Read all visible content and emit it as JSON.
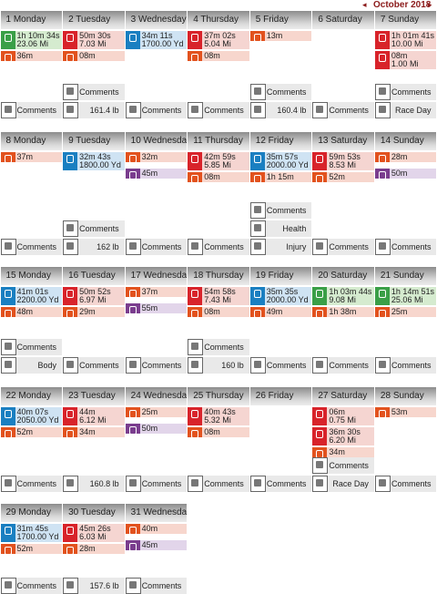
{
  "month": "October 2018",
  "weeks": [
    {
      "days": [
        {
          "label": "1 Monday",
          "activities": [
            {
              "icon": "#3a9f47",
              "bg": "#d5ebcf",
              "lines": [
                "1h 10m 34s",
                "23.06 Mi"
              ]
            },
            {
              "icon": "#e2521e",
              "bg": "#f7d6cd",
              "lines": [
                "36m"
              ]
            }
          ],
          "footer": [
            "Comments"
          ]
        },
        {
          "label": "2 Tuesday",
          "activities": [
            {
              "icon": "#d8232a",
              "bg": "#f5d5d1",
              "lines": [
                "50m 30s",
                "7.03 Mi"
              ]
            },
            {
              "icon": "#e2521e",
              "bg": "#f7d6cd",
              "lines": [
                "08m"
              ]
            }
          ],
          "footer": [
            "Comments",
            "161.4 lb"
          ]
        },
        {
          "label": "3 Wednesday",
          "activities": [
            {
              "icon": "#1a7fc1",
              "bg": "#cfe3f3",
              "lines": [
                "34m 11s",
                "1700.00 Yd"
              ]
            }
          ],
          "footer": [
            "Comments"
          ]
        },
        {
          "label": "4 Thursday",
          "activities": [
            {
              "icon": "#d8232a",
              "bg": "#f5d5d1",
              "lines": [
                "37m 02s",
                "5.04 Mi"
              ]
            },
            {
              "icon": "#e2521e",
              "bg": "#f7d6cd",
              "lines": [
                "08m"
              ]
            }
          ],
          "footer": [
            "Comments"
          ]
        },
        {
          "label": "5 Friday",
          "activities": [
            {
              "icon": "#e2521e",
              "bg": "#f7d6cd",
              "lines": [
                "13m"
              ]
            }
          ],
          "footer": [
            "Comments",
            "160.4 lb"
          ]
        },
        {
          "label": "6 Saturday",
          "activities": [],
          "footer": [
            "Comments"
          ]
        },
        {
          "label": "7 Sunday",
          "activities": [
            {
              "icon": "#d8232a",
              "bg": "#f5d5d1",
              "lines": [
                "1h 01m 41s",
                "10.00 Mi"
              ]
            },
            {
              "icon": "#d8232a",
              "bg": "#f5d5d1",
              "lines": [
                "08m",
                "1.00 Mi"
              ]
            }
          ],
          "footer": [
            "Comments",
            "Race Day"
          ]
        }
      ]
    },
    {
      "days": [
        {
          "label": "8 Monday",
          "activities": [
            {
              "icon": "#e2521e",
              "bg": "#f7d6cd",
              "lines": [
                "37m"
              ]
            }
          ],
          "footer": [
            "Comments"
          ]
        },
        {
          "label": "9 Tuesday",
          "activities": [
            {
              "icon": "#1a7fc1",
              "bg": "#cfe3f3",
              "lines": [
                "32m 43s",
                "1800.00 Yd"
              ]
            }
          ],
          "footer": [
            "Comments",
            "162 lb"
          ]
        },
        {
          "label": "10 Wednesday",
          "activities": [
            {
              "icon": "#e2521e",
              "bg": "#f7d6cd",
              "lines": [
                "32m"
              ]
            },
            {
              "icon": "#7a3d8e",
              "bg": "#e2d5ea",
              "lines": [
                "45m"
              ]
            }
          ],
          "footer": [
            "Comments"
          ]
        },
        {
          "label": "11 Thursday",
          "activities": [
            {
              "icon": "#d8232a",
              "bg": "#f5d5d1",
              "lines": [
                "42m 59s",
                "5.85 Mi"
              ]
            },
            {
              "icon": "#e2521e",
              "bg": "#f7d6cd",
              "lines": [
                "08m"
              ]
            }
          ],
          "footer": [
            "Comments"
          ]
        },
        {
          "label": "12 Friday",
          "activities": [
            {
              "icon": "#1a7fc1",
              "bg": "#cfe3f3",
              "lines": [
                "35m 57s",
                "2000.00 Yd"
              ]
            },
            {
              "icon": "#e2521e",
              "bg": "#f7d6cd",
              "lines": [
                "1h 15m"
              ]
            }
          ],
          "footer": [
            "Comments",
            "Health",
            "Injury"
          ]
        },
        {
          "label": "13 Saturday",
          "activities": [
            {
              "icon": "#d8232a",
              "bg": "#f5d5d1",
              "lines": [
                "59m 53s",
                "8.53 Mi"
              ]
            },
            {
              "icon": "#e2521e",
              "bg": "#f7d6cd",
              "lines": [
                "52m"
              ]
            }
          ],
          "footer": [
            "Comments"
          ]
        },
        {
          "label": "14 Sunday",
          "activities": [
            {
              "icon": "#e2521e",
              "bg": "#f7d6cd",
              "lines": [
                "28m"
              ]
            },
            {
              "icon": "#7a3d8e",
              "bg": "#e2d5ea",
              "lines": [
                "50m"
              ]
            }
          ],
          "footer": [
            "Comments"
          ]
        }
      ]
    },
    {
      "days": [
        {
          "label": "15 Monday",
          "activities": [
            {
              "icon": "#1a7fc1",
              "bg": "#cfe3f3",
              "lines": [
                "41m 01s",
                "2200.00 Yd"
              ]
            },
            {
              "icon": "#e2521e",
              "bg": "#f7d6cd",
              "lines": [
                "48m"
              ]
            }
          ],
          "footer": [
            "Comments",
            "Body"
          ]
        },
        {
          "label": "16 Tuesday",
          "activities": [
            {
              "icon": "#d8232a",
              "bg": "#f5d5d1",
              "lines": [
                "50m 52s",
                "6.97 Mi"
              ]
            },
            {
              "icon": "#e2521e",
              "bg": "#f7d6cd",
              "lines": [
                "29m"
              ]
            }
          ],
          "footer": [
            "Comments"
          ]
        },
        {
          "label": "17 Wednesday",
          "activities": [
            {
              "icon": "#e2521e",
              "bg": "#f7d6cd",
              "lines": [
                "37m"
              ]
            },
            {
              "icon": "#7a3d8e",
              "bg": "#e2d5ea",
              "lines": [
                "55m"
              ]
            }
          ],
          "footer": [
            "Comments"
          ]
        },
        {
          "label": "18 Thursday",
          "activities": [
            {
              "icon": "#d8232a",
              "bg": "#f5d5d1",
              "lines": [
                "54m 58s",
                "7.43 Mi"
              ]
            },
            {
              "icon": "#e2521e",
              "bg": "#f7d6cd",
              "lines": [
                "08m"
              ]
            }
          ],
          "footer": [
            "Comments",
            "160 lb"
          ]
        },
        {
          "label": "19 Friday",
          "activities": [
            {
              "icon": "#1a7fc1",
              "bg": "#cfe3f3",
              "lines": [
                "35m 35s",
                "2000.00 Yd"
              ]
            },
            {
              "icon": "#e2521e",
              "bg": "#f7d6cd",
              "lines": [
                "49m"
              ]
            }
          ],
          "footer": [
            "Comments"
          ]
        },
        {
          "label": "20 Saturday",
          "activities": [
            {
              "icon": "#3a9f47",
              "bg": "#d5ebcf",
              "lines": [
                "1h 03m 44s",
                "9.08 Mi"
              ]
            },
            {
              "icon": "#e2521e",
              "bg": "#f7d6cd",
              "lines": [
                "1h 38m"
              ]
            }
          ],
          "footer": [
            "Comments"
          ]
        },
        {
          "label": "21 Sunday",
          "activities": [
            {
              "icon": "#3a9f47",
              "bg": "#d5ebcf",
              "lines": [
                "1h 14m 51s",
                "25.06 Mi"
              ]
            },
            {
              "icon": "#e2521e",
              "bg": "#f7d6cd",
              "lines": [
                "25m"
              ]
            }
          ],
          "footer": [
            "Comments"
          ]
        }
      ]
    },
    {
      "days": [
        {
          "label": "22 Monday",
          "activities": [
            {
              "icon": "#1a7fc1",
              "bg": "#cfe3f3",
              "lines": [
                "40m 07s",
                "2050.00 Yd"
              ]
            },
            {
              "icon": "#e2521e",
              "bg": "#f7d6cd",
              "lines": [
                "52m"
              ]
            }
          ],
          "footer": [
            "Comments"
          ]
        },
        {
          "label": "23 Tuesday",
          "activities": [
            {
              "icon": "#d8232a",
              "bg": "#f5d5d1",
              "lines": [
                "44m",
                "6.12 Mi"
              ]
            },
            {
              "icon": "#e2521e",
              "bg": "#f7d6cd",
              "lines": [
                "34m"
              ]
            }
          ],
          "footer": [
            "160.8 lb"
          ]
        },
        {
          "label": "24 Wednesday",
          "activities": [
            {
              "icon": "#e2521e",
              "bg": "#f7d6cd",
              "lines": [
                "25m"
              ]
            },
            {
              "icon": "#7a3d8e",
              "bg": "#e2d5ea",
              "lines": [
                "50m"
              ]
            }
          ],
          "footer": [
            "Comments"
          ]
        },
        {
          "label": "25 Thursday",
          "activities": [
            {
              "icon": "#d8232a",
              "bg": "#f5d5d1",
              "lines": [
                "40m 43s",
                "5.32 Mi"
              ]
            },
            {
              "icon": "#e2521e",
              "bg": "#f7d6cd",
              "lines": [
                "08m"
              ]
            }
          ],
          "footer": [
            "Comments"
          ]
        },
        {
          "label": "26 Friday",
          "activities": [],
          "footer": [
            "Comments"
          ]
        },
        {
          "label": "27 Saturday",
          "activities": [
            {
              "icon": "#d8232a",
              "bg": "#f5d5d1",
              "lines": [
                "06m",
                "0.75 Mi"
              ]
            },
            {
              "icon": "#d8232a",
              "bg": "#f5d5d1",
              "lines": [
                "36m 30s",
                "6.20 Mi"
              ]
            },
            {
              "icon": "#e2521e",
              "bg": "#f7d6cd",
              "lines": [
                "34m"
              ]
            }
          ],
          "footer": [
            "Comments",
            "Race Day"
          ]
        },
        {
          "label": "28 Sunday",
          "activities": [
            {
              "icon": "#e2521e",
              "bg": "#f7d6cd",
              "lines": [
                "53m"
              ]
            }
          ],
          "footer": [
            "Comments"
          ]
        }
      ]
    },
    {
      "days": [
        {
          "label": "29 Monday",
          "activities": [
            {
              "icon": "#1a7fc1",
              "bg": "#cfe3f3",
              "lines": [
                "31m 45s",
                "1700.00 Yd"
              ]
            },
            {
              "icon": "#e2521e",
              "bg": "#f7d6cd",
              "lines": [
                "52m"
              ]
            }
          ],
          "footer": [
            "Comments"
          ]
        },
        {
          "label": "30 Tuesday",
          "activities": [
            {
              "icon": "#d8232a",
              "bg": "#f5d5d1",
              "lines": [
                "45m 26s",
                "6.03 Mi"
              ]
            },
            {
              "icon": "#e2521e",
              "bg": "#f7d6cd",
              "lines": [
                "28m"
              ]
            }
          ],
          "footer": [
            "157.6 lb"
          ]
        },
        {
          "label": "31 Wednesday",
          "activities": [
            {
              "icon": "#e2521e",
              "bg": "#f7d6cd",
              "lines": [
                "40m"
              ]
            },
            {
              "icon": "#7a3d8e",
              "bg": "#e2d5ea",
              "lines": [
                "45m"
              ]
            }
          ],
          "footer": [
            "Comments"
          ]
        }
      ]
    }
  ]
}
